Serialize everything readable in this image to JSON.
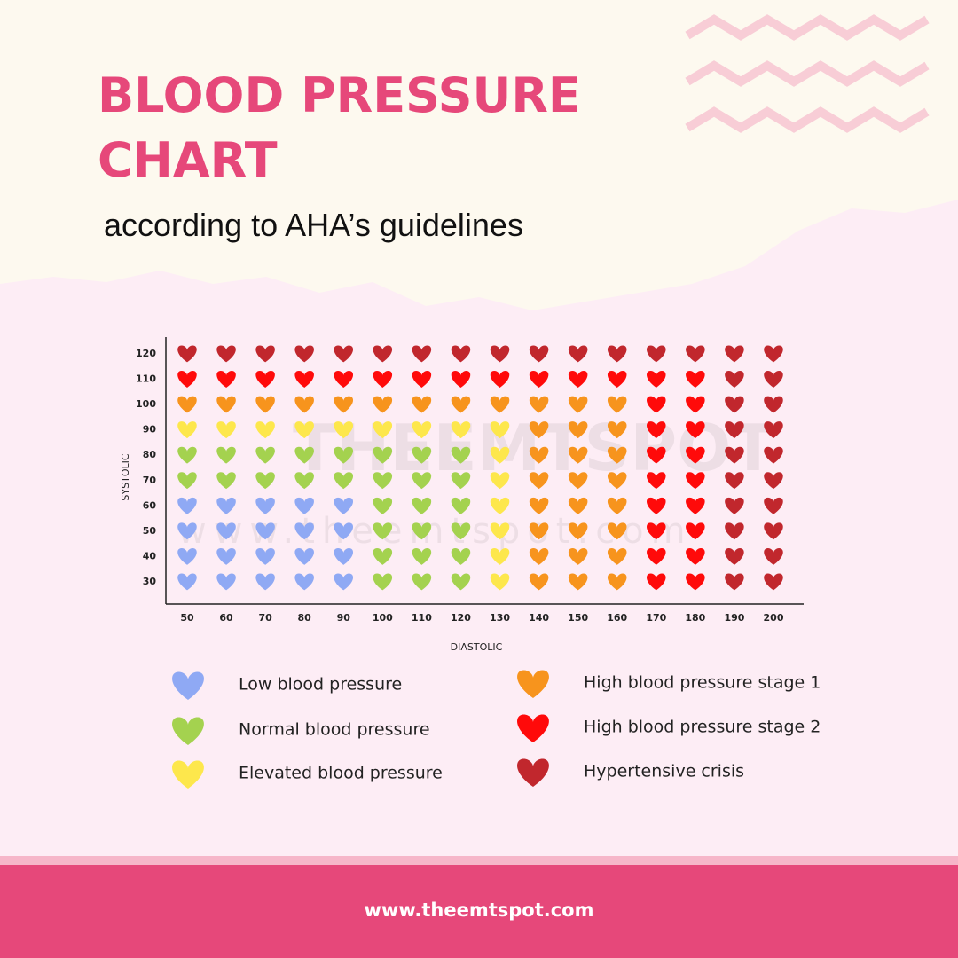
{
  "header": {
    "title_lines": [
      "BLOOD PRESSURE",
      "CHART"
    ],
    "subtitle": "according to AHA’s guidelines"
  },
  "chart_data": {
    "type": "heart-grid",
    "x_label": "DIASTOLIC",
    "y_label": "SYSTOLIC",
    "x_categories": [
      50,
      60,
      70,
      80,
      90,
      100,
      110,
      120,
      130,
      140,
      150,
      160,
      170,
      180,
      190,
      200
    ],
    "y_categories": [
      120,
      110,
      100,
      90,
      80,
      70,
      60,
      50,
      40,
      30
    ],
    "series": [
      {
        "name": "Low blood pressure",
        "color": "#8fa9f4"
      },
      {
        "name": "Normal blood pressure",
        "color": "#a4d24f"
      },
      {
        "name": "Elevated blood pressure",
        "color": "#fde74c"
      },
      {
        "name": "High blood pressure stage 1",
        "color": "#f7941d"
      },
      {
        "name": "High blood pressure stage 2",
        "color": "#ff0a0a"
      },
      {
        "name": "Hypertensive crisis",
        "color": "#c1272d"
      }
    ],
    "values": [
      [
        5,
        5,
        5,
        5,
        5,
        5,
        5,
        5,
        5,
        5,
        5,
        5,
        5,
        5,
        5,
        5
      ],
      [
        4,
        4,
        4,
        4,
        4,
        4,
        4,
        4,
        4,
        4,
        4,
        4,
        4,
        4,
        5,
        5
      ],
      [
        3,
        3,
        3,
        3,
        3,
        3,
        3,
        3,
        3,
        3,
        3,
        3,
        4,
        4,
        5,
        5
      ],
      [
        2,
        2,
        2,
        2,
        2,
        2,
        2,
        2,
        2,
        3,
        3,
        3,
        4,
        4,
        5,
        5
      ],
      [
        1,
        1,
        1,
        1,
        1,
        1,
        1,
        1,
        2,
        3,
        3,
        3,
        4,
        4,
        5,
        5
      ],
      [
        1,
        1,
        1,
        1,
        1,
        1,
        1,
        1,
        2,
        3,
        3,
        3,
        4,
        4,
        5,
        5
      ],
      [
        0,
        0,
        0,
        0,
        0,
        1,
        1,
        1,
        2,
        3,
        3,
        3,
        4,
        4,
        5,
        5
      ],
      [
        0,
        0,
        0,
        0,
        0,
        1,
        1,
        1,
        2,
        3,
        3,
        3,
        4,
        4,
        5,
        5
      ],
      [
        0,
        0,
        0,
        0,
        0,
        1,
        1,
        1,
        2,
        3,
        3,
        3,
        4,
        4,
        5,
        5
      ],
      [
        0,
        0,
        0,
        0,
        0,
        1,
        1,
        1,
        2,
        3,
        3,
        3,
        4,
        4,
        5,
        5
      ]
    ],
    "watermark": [
      "THEEMTSPOT",
      "www.theemtspot.com"
    ]
  },
  "footer": {
    "url": "www.theemtspot.com"
  }
}
